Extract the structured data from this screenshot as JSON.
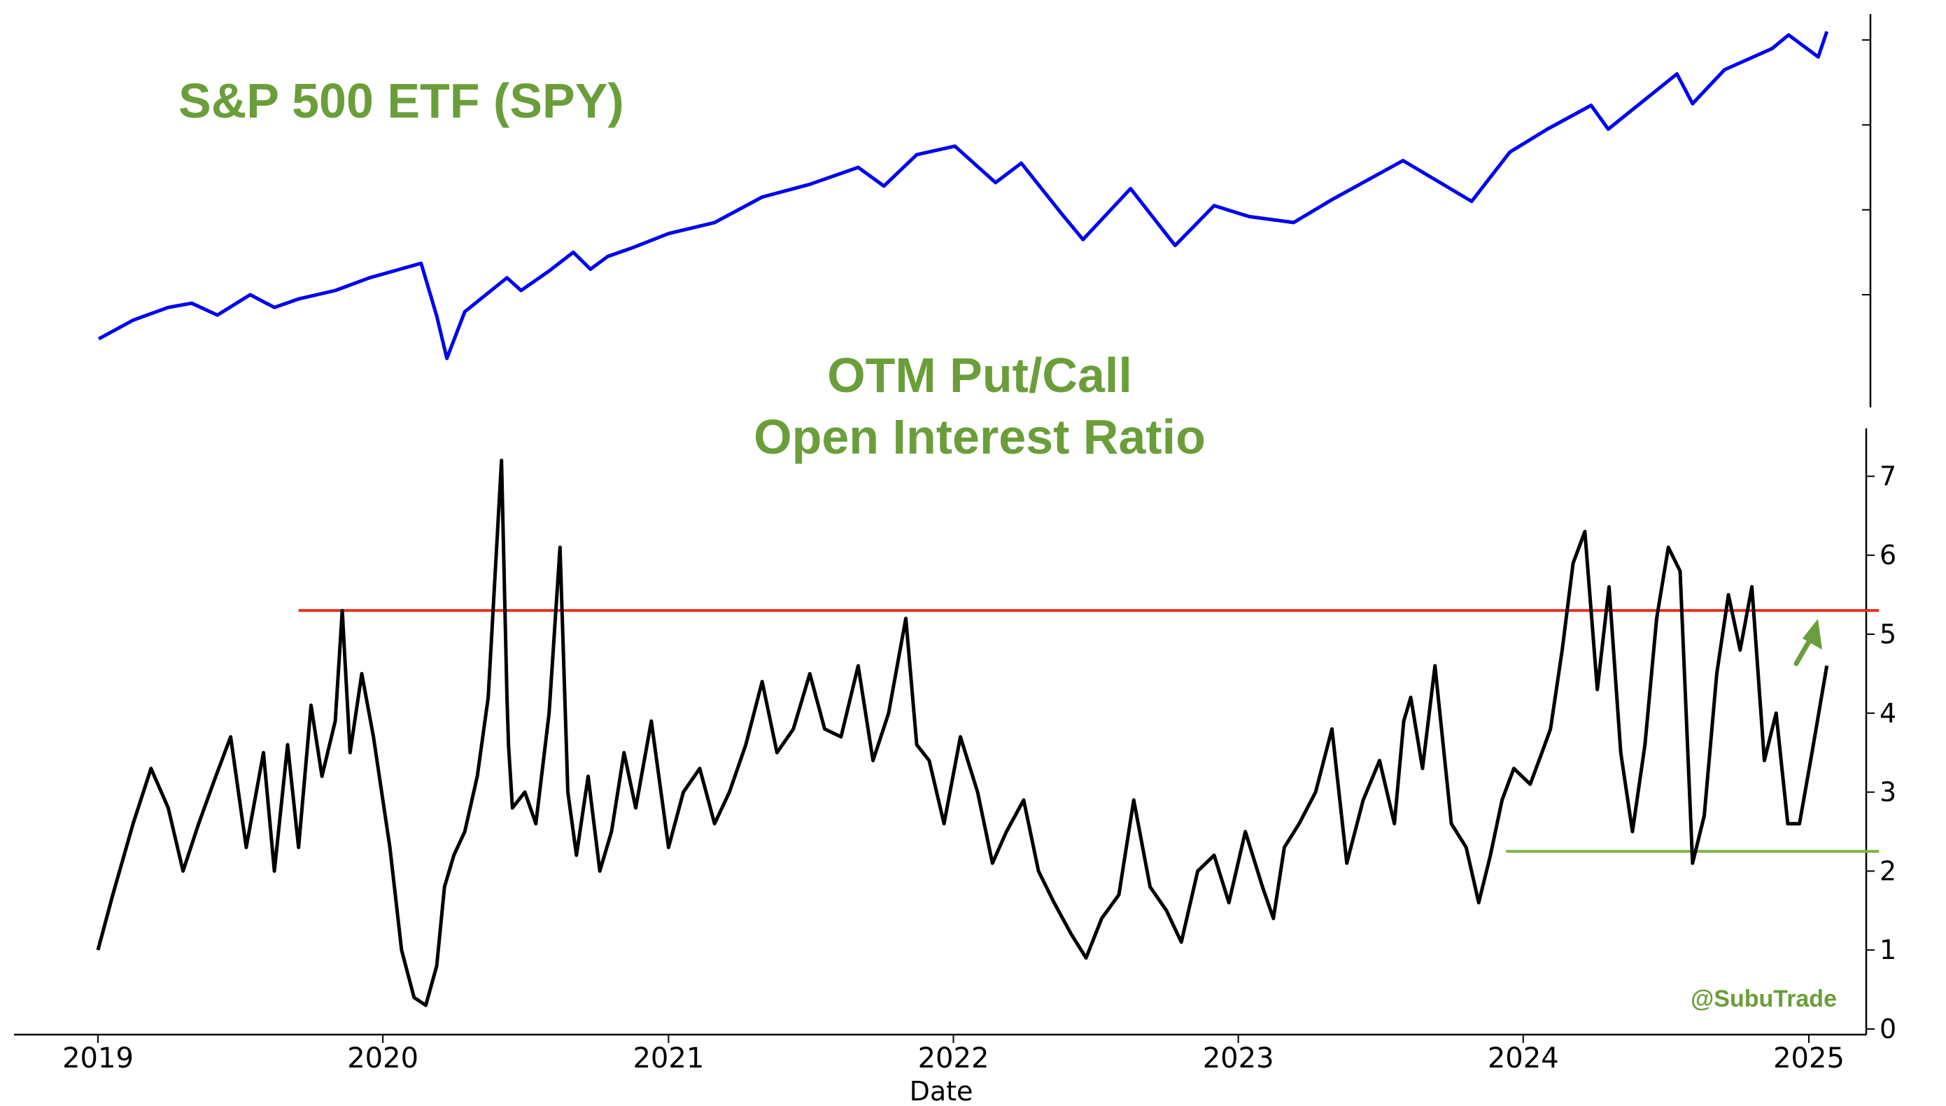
{
  "chart_data": [
    {
      "type": "line",
      "title": "S&P 500 ETF (SPY)",
      "xlabel": "",
      "ylabel": "",
      "ytick_labels_shown": false,
      "series": [
        {
          "color": "#0000ee",
          "x": [
            "2019-01-02",
            "2019-02-15",
            "2019-04-01",
            "2019-05-01",
            "2019-06-03",
            "2019-07-15",
            "2019-08-15",
            "2019-09-15",
            "2019-11-01",
            "2019-12-15",
            "2020-01-15",
            "2020-02-19",
            "2020-03-10",
            "2020-03-23",
            "2020-04-15",
            "2020-06-08",
            "2020-06-26",
            "2020-08-01",
            "2020-09-01",
            "2020-09-23",
            "2020-10-15",
            "2020-11-15",
            "2021-01-01",
            "2021-03-01",
            "2021-05-01",
            "2021-07-01",
            "2021-09-01",
            "2021-10-04",
            "2021-11-15",
            "2022-01-03",
            "2022-02-24",
            "2022-03-29",
            "2022-05-20",
            "2022-06-16",
            "2022-08-16",
            "2022-10-12",
            "2022-12-01",
            "2023-01-15",
            "2023-03-13",
            "2023-05-01",
            "2023-07-31",
            "2023-10-27",
            "2023-12-15",
            "2024-02-01",
            "2024-03-28",
            "2024-04-19",
            "2024-07-16",
            "2024-08-05",
            "2024-09-15",
            "2024-11-15",
            "2024-12-06",
            "2025-01-13",
            "2025-01-24"
          ],
          "y": [
            248,
            270,
            285,
            290,
            276,
            300,
            285,
            295,
            305,
            320,
            328,
            337,
            275,
            225,
            280,
            320,
            305,
            328,
            350,
            330,
            345,
            355,
            372,
            385,
            415,
            430,
            450,
            428,
            465,
            475,
            432,
            455,
            395,
            365,
            425,
            358,
            405,
            392,
            385,
            412,
            458,
            410,
            468,
            495,
            523,
            495,
            560,
            525,
            565,
            590,
            606,
            580,
            610
          ]
        }
      ]
    },
    {
      "type": "line",
      "title": "OTM Put/Call\nOpen Interest Ratio",
      "xlabel": "Date",
      "ylabel": "",
      "xlim": [
        "2019-01-01",
        "2025-05-01"
      ],
      "ylim": [
        0,
        7.5
      ],
      "x_ticks": [
        "2019",
        "2020",
        "2021",
        "2022",
        "2023",
        "2024",
        "2025"
      ],
      "y_ticks": [
        "0",
        "1",
        "2",
        "3",
        "4",
        "5",
        "6",
        "7"
      ],
      "grid": false,
      "series": [
        {
          "color": "#000000",
          "x": [
            "2019-01-01",
            "2019-01-20",
            "2019-02-15",
            "2019-03-10",
            "2019-04-01",
            "2019-04-20",
            "2019-05-10",
            "2019-06-01",
            "2019-06-20",
            "2019-07-10",
            "2019-08-01",
            "2019-08-15",
            "2019-09-01",
            "2019-09-15",
            "2019-10-01",
            "2019-10-15",
            "2019-11-01",
            "2019-11-10",
            "2019-11-20",
            "2019-12-05",
            "2019-12-20",
            "2020-01-10",
            "2020-01-25",
            "2020-02-10",
            "2020-02-25",
            "2020-03-10",
            "2020-03-20",
            "2020-04-01",
            "2020-04-15",
            "2020-05-01",
            "2020-05-15",
            "2020-06-01",
            "2020-06-08",
            "2020-06-10",
            "2020-06-15",
            "2020-07-01",
            "2020-07-15",
            "2020-08-01",
            "2020-08-15",
            "2020-08-25",
            "2020-09-05",
            "2020-09-20",
            "2020-10-05",
            "2020-10-20",
            "2020-11-05",
            "2020-11-20",
            "2020-12-10",
            "2021-01-01",
            "2021-01-20",
            "2021-02-10",
            "2021-03-01",
            "2021-03-20",
            "2021-04-10",
            "2021-05-01",
            "2021-05-20",
            "2021-06-10",
            "2021-07-01",
            "2021-07-20",
            "2021-08-10",
            "2021-09-01",
            "2021-09-20",
            "2021-10-10",
            "2021-11-01",
            "2021-11-15",
            "2021-12-01",
            "2021-12-20",
            "2022-01-10",
            "2022-02-01",
            "2022-02-20",
            "2022-03-10",
            "2022-04-01",
            "2022-04-20",
            "2022-05-10",
            "2022-06-01",
            "2022-06-20",
            "2022-07-10",
            "2022-08-01",
            "2022-08-20",
            "2022-09-10",
            "2022-10-01",
            "2022-10-20",
            "2022-11-10",
            "2022-12-01",
            "2022-12-20",
            "2023-01-10",
            "2023-02-01",
            "2023-02-15",
            "2023-03-01",
            "2023-03-20",
            "2023-04-10",
            "2023-05-01",
            "2023-05-20",
            "2023-06-10",
            "2023-07-01",
            "2023-07-20",
            "2023-08-01",
            "2023-08-10",
            "2023-08-25",
            "2023-09-10",
            "2023-10-01",
            "2023-10-20",
            "2023-11-05",
            "2023-11-20",
            "2023-12-05",
            "2023-12-20",
            "2024-01-10",
            "2024-01-25",
            "2024-02-05",
            "2024-02-20",
            "2024-03-05",
            "2024-03-20",
            "2024-04-05",
            "2024-04-20",
            "2024-05-05",
            "2024-05-20",
            "2024-06-05",
            "2024-06-20",
            "2024-07-05",
            "2024-07-20",
            "2024-08-05",
            "2024-08-20",
            "2024-09-05",
            "2024-09-20",
            "2024-10-05",
            "2024-10-20",
            "2024-11-05",
            "2024-11-20",
            "2024-12-05",
            "2024-12-20",
            "2025-01-05",
            "2025-01-24"
          ],
          "y": [
            1.0,
            1.7,
            2.6,
            3.3,
            2.8,
            2.0,
            2.6,
            3.2,
            3.7,
            2.3,
            3.5,
            2.0,
            3.6,
            2.3,
            4.1,
            3.2,
            3.9,
            5.3,
            3.5,
            4.5,
            3.7,
            2.3,
            1.0,
            0.4,
            0.3,
            0.8,
            1.8,
            2.2,
            2.5,
            3.2,
            4.2,
            7.2,
            4.2,
            3.6,
            2.8,
            3.0,
            2.6,
            4.0,
            6.1,
            3.0,
            2.2,
            3.2,
            2.0,
            2.5,
            3.5,
            2.8,
            3.9,
            2.3,
            3.0,
            3.3,
            2.6,
            3.0,
            3.6,
            4.4,
            3.5,
            3.8,
            4.5,
            3.8,
            3.7,
            4.6,
            3.4,
            4.0,
            5.2,
            3.6,
            3.4,
            2.6,
            3.7,
            3.0,
            2.1,
            2.5,
            2.9,
            2.0,
            1.6,
            1.2,
            0.9,
            1.4,
            1.7,
            2.9,
            1.8,
            1.5,
            1.1,
            2.0,
            2.2,
            1.6,
            2.5,
            1.8,
            1.4,
            2.3,
            2.6,
            3.0,
            3.8,
            2.1,
            2.9,
            3.4,
            2.6,
            3.9,
            4.2,
            3.3,
            4.6,
            2.6,
            2.3,
            1.6,
            2.2,
            2.9,
            3.3,
            3.1,
            3.5,
            3.8,
            4.8,
            5.9,
            6.3,
            4.3,
            5.6,
            3.5,
            2.5,
            3.6,
            5.2,
            6.1,
            5.8,
            2.1,
            2.7,
            4.5,
            5.5,
            4.8,
            5.6,
            3.4,
            4.0,
            2.6,
            2.6,
            3.5,
            4.6
          ]
        }
      ],
      "reference_lines": [
        {
          "y": 5.3,
          "color": "#e8301c",
          "x_start": "2019-09-15",
          "x_end": "2025-04-01"
        },
        {
          "y": 2.25,
          "color": "#7cb342",
          "x_start": "2023-12-10",
          "x_end": "2025-04-01"
        }
      ],
      "annotations": [
        {
          "text": "@SubuTrade",
          "color": "#6b9e3a"
        },
        {
          "text": "",
          "shape": "upward arrow",
          "color": "#6b9e3a"
        }
      ]
    }
  ]
}
